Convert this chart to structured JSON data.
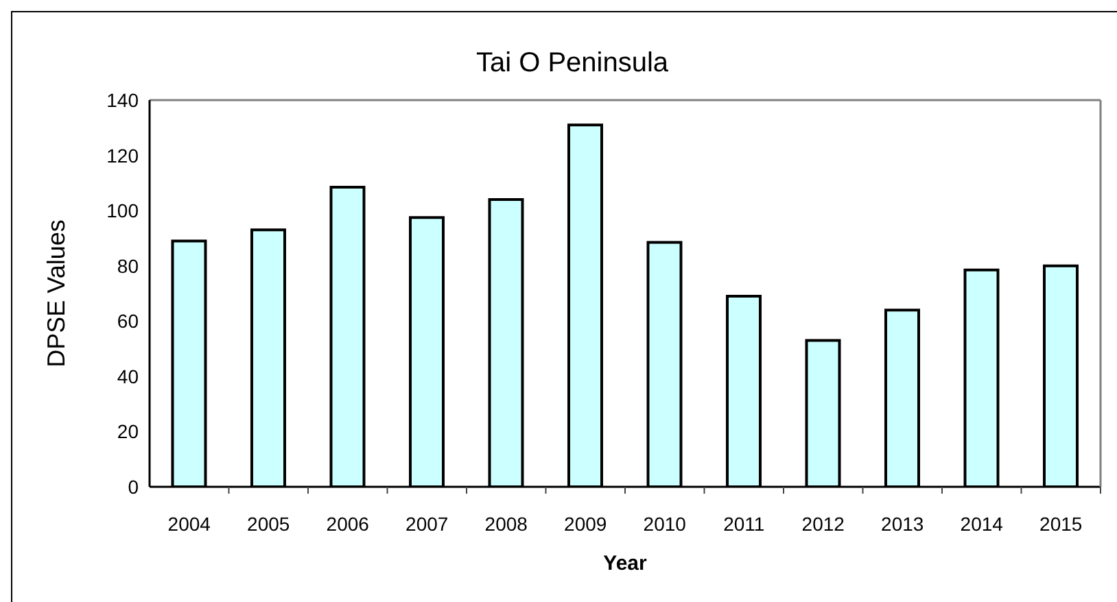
{
  "chart_data": {
    "type": "bar",
    "title": "Tai O Peninsula",
    "xlabel": "Year",
    "ylabel": "DPSE Values",
    "categories": [
      "2004",
      "2005",
      "2006",
      "2007",
      "2008",
      "2009",
      "2010",
      "2011",
      "2012",
      "2013",
      "2014",
      "2015"
    ],
    "values": [
      89,
      93,
      108.5,
      97.5,
      104,
      131,
      88.5,
      69,
      53,
      64,
      78.5,
      80
    ],
    "color": "#ccffff",
    "ylim": [
      0,
      140
    ],
    "yticks": [
      0,
      20,
      40,
      60,
      80,
      100,
      120,
      140
    ]
  }
}
